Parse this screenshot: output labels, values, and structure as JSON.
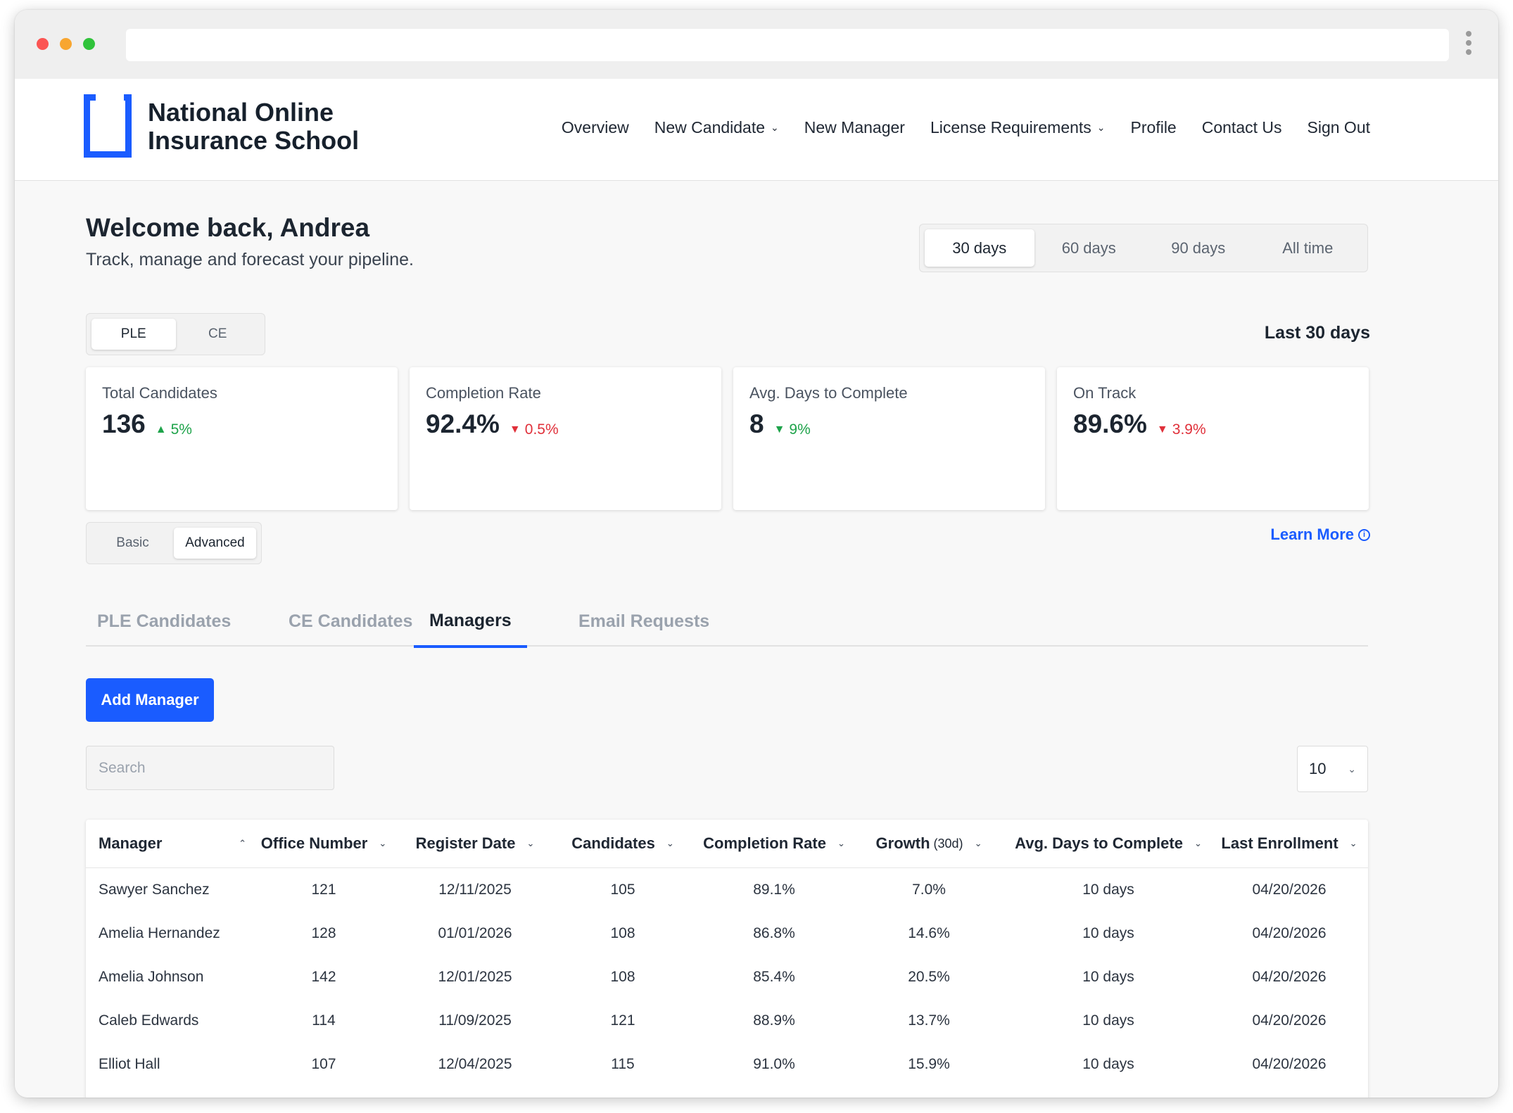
{
  "brand": {
    "line1": "National Online",
    "line2": "Insurance School",
    "accent": "#1a5cff"
  },
  "nav": {
    "items": [
      {
        "label": "Overview",
        "dropdown": false
      },
      {
        "label": "New Candidate",
        "dropdown": true
      },
      {
        "label": "New Manager",
        "dropdown": false
      },
      {
        "label": "License Requirements",
        "dropdown": true
      },
      {
        "label": "Profile",
        "dropdown": false
      },
      {
        "label": "Contact Us",
        "dropdown": false
      },
      {
        "label": "Sign Out",
        "dropdown": false
      }
    ]
  },
  "welcome": {
    "title": "Welcome back, Andrea",
    "subtitle": "Track, manage and forecast your pipeline."
  },
  "range": {
    "options": [
      "30 days",
      "60 days",
      "90 days",
      "All time"
    ],
    "selected": "30 days"
  },
  "program": {
    "options": [
      "PLE",
      "CE"
    ],
    "selected": "PLE"
  },
  "period_label": "Last 30 days",
  "stats": [
    {
      "label": "Total Candidates",
      "value": "136",
      "delta": "5%",
      "direction": "up"
    },
    {
      "label": "Completion Rate",
      "value": "92.4%",
      "delta": "0.5%",
      "direction": "down"
    },
    {
      "label": "Avg. Days to Complete",
      "value": "8",
      "delta": "9%",
      "direction": "down-good"
    },
    {
      "label": "On Track",
      "value": "89.6%",
      "delta": "3.9%",
      "direction": "down"
    }
  ],
  "view_mode": {
    "options": [
      "Basic",
      "Advanced"
    ],
    "selected": "Advanced"
  },
  "learn_more": "Learn More",
  "tabs": [
    {
      "label": "PLE Candidates",
      "active": false
    },
    {
      "label": "CE Candidates",
      "active": false
    },
    {
      "label": "Managers",
      "active": true
    },
    {
      "label": "Email Requests",
      "active": false
    }
  ],
  "add_manager_label": "Add Manager",
  "search": {
    "placeholder": "Search",
    "value": ""
  },
  "page_size": "10",
  "table": {
    "columns": [
      {
        "label": "Manager",
        "note": ""
      },
      {
        "label": "Office Number",
        "note": ""
      },
      {
        "label": "Register Date",
        "note": ""
      },
      {
        "label": "Candidates",
        "note": ""
      },
      {
        "label": "Completion Rate",
        "note": ""
      },
      {
        "label": "Growth",
        "note": "(30d)"
      },
      {
        "label": "Avg. Days to Complete",
        "note": ""
      },
      {
        "label": "Last Enrollment",
        "note": ""
      }
    ],
    "rows": [
      [
        "Sawyer Sanchez",
        "121",
        "12/11/2025",
        "105",
        "89.1%",
        "7.0%",
        "10 days",
        "04/20/2026"
      ],
      [
        "Amelia Hernandez",
        "128",
        "01/01/2026",
        "108",
        "86.8%",
        "14.6%",
        "10 days",
        "04/20/2026"
      ],
      [
        "Amelia Johnson",
        "142",
        "12/01/2025",
        "108",
        "85.4%",
        "20.5%",
        "10 days",
        "04/20/2026"
      ],
      [
        "Caleb Edwards",
        "114",
        "11/09/2025",
        "121",
        "88.9%",
        "13.7%",
        "10 days",
        "04/20/2026"
      ],
      [
        "Elliot Hall",
        "107",
        "12/04/2025",
        "115",
        "91.0%",
        "15.9%",
        "10 days",
        "04/20/2026"
      ]
    ]
  }
}
